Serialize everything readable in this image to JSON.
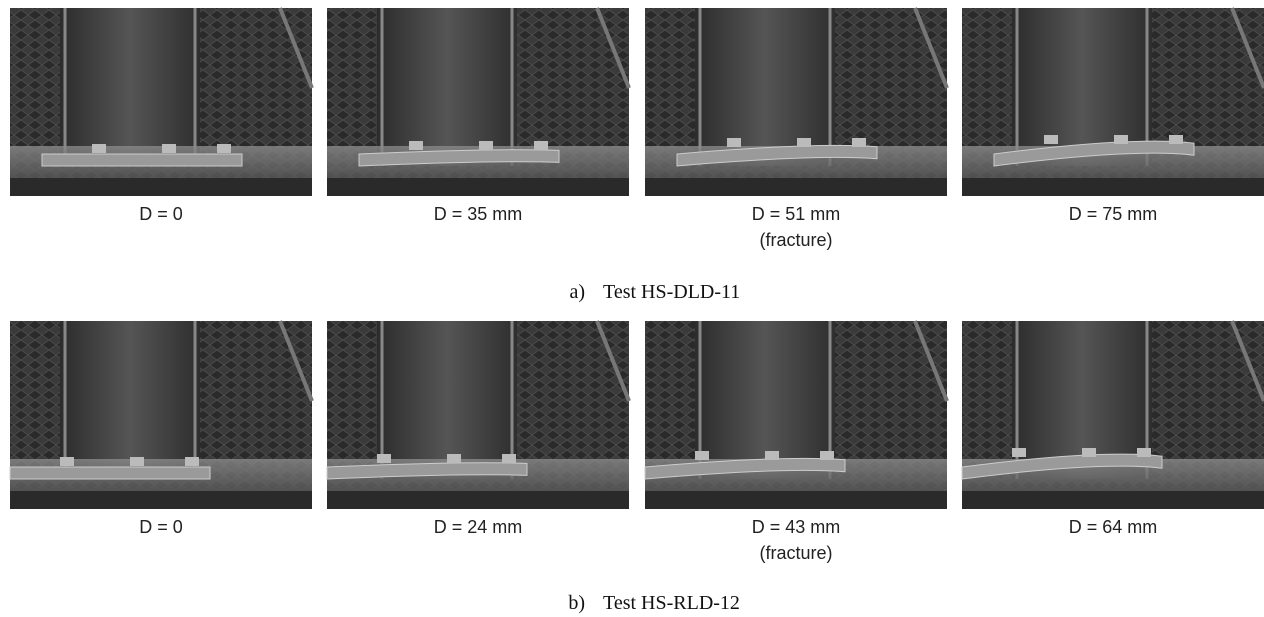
{
  "figures": [
    {
      "panels": [
        {
          "label": "D = 0"
        },
        {
          "label": "D = 35 mm"
        },
        {
          "label": "D = 51 mm",
          "note": "(fracture)"
        },
        {
          "label": "D = 75 mm"
        }
      ],
      "caption_label": "a)",
      "caption": "Test HS-DLD-11"
    },
    {
      "panels": [
        {
          "label": "D = 0"
        },
        {
          "label": "D = 24 mm"
        },
        {
          "label": "D = 43 mm",
          "note": "(fracture)"
        },
        {
          "label": "D = 64 mm"
        }
      ],
      "caption_label": "b)",
      "caption": "Test HS-RLD-12"
    }
  ]
}
